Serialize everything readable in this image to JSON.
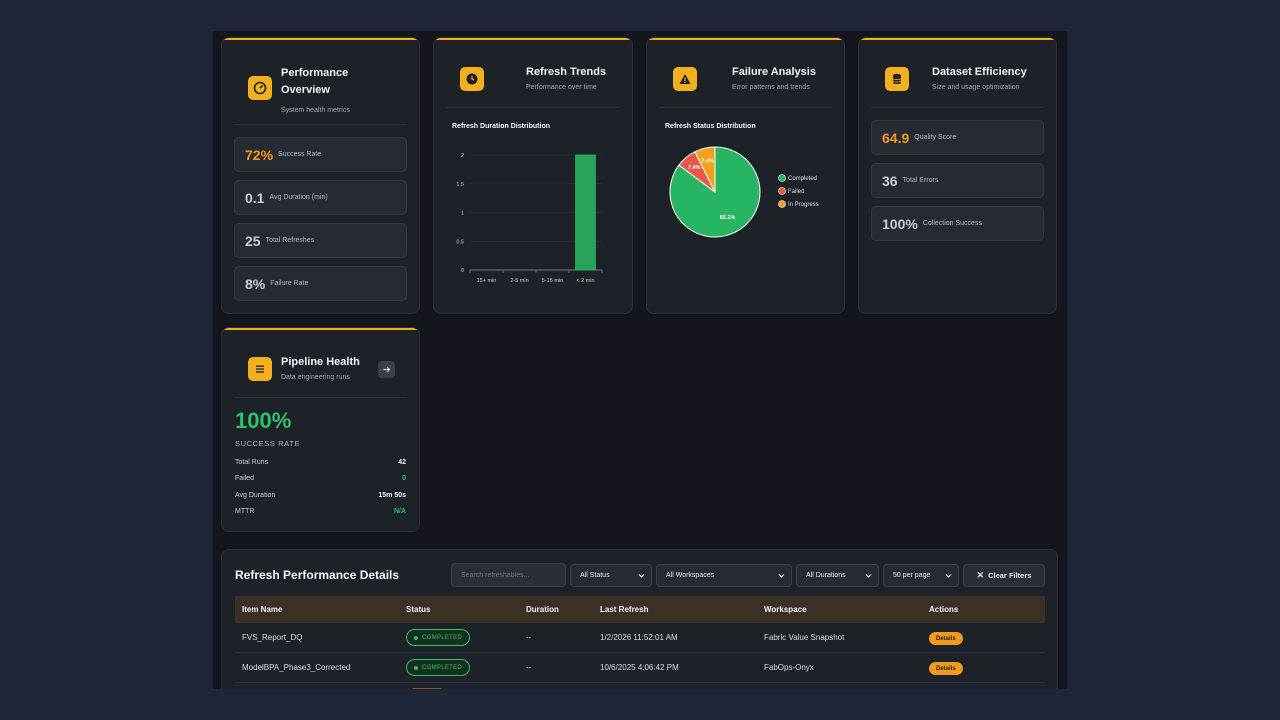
{
  "performance": {
    "title_line1": "Performance",
    "title_line2": "Overview",
    "subtitle": "System health metrics",
    "metrics": [
      {
        "value": "72%",
        "label": "Success Rate"
      },
      {
        "value": "0.1",
        "label": "Avg Duration (min)"
      },
      {
        "value": "25",
        "label": "Total Refreshes"
      },
      {
        "value": "8%",
        "label": "Failure Rate"
      }
    ]
  },
  "trends": {
    "title": "Refresh Trends",
    "subtitle": "Performance over time",
    "chart_title": "Refresh Duration Distribution"
  },
  "failure": {
    "title": "Failure Analysis",
    "subtitle": "Error patterns and trends",
    "chart_title": "Refresh Status Distribution"
  },
  "efficiency": {
    "title": "Dataset Efficiency",
    "subtitle": "Size and usage optimization",
    "metrics": [
      {
        "value": "64.9",
        "label": "Quality Score"
      },
      {
        "value": "36",
        "label": "Total Errors"
      },
      {
        "value": "100%",
        "label": "Collection Success"
      }
    ]
  },
  "pipeline": {
    "title": "Pipeline Health",
    "subtitle": "Data engineering runs",
    "big_value": "100%",
    "big_label": "SUCCESS RATE",
    "rows": [
      {
        "label": "Total Runs",
        "value": "42"
      },
      {
        "label": "Failed",
        "value": "0"
      },
      {
        "label": "Avg Duration",
        "value": "15m 50s"
      },
      {
        "label": "MTTR",
        "value": "N/A"
      }
    ]
  },
  "details": {
    "title": "Refresh Performance Details",
    "search_placeholder": "Search refreshables...",
    "filters": {
      "status": "All Status",
      "workspaces": "All Workspaces",
      "durations": "All Durations",
      "per_page": "50 per page",
      "clear": "Clear Filters"
    },
    "columns": [
      "Item Name",
      "Status",
      "Duration",
      "Last Refresh",
      "Workspace",
      "Actions"
    ],
    "rows": [
      {
        "name": "FVS_Report_DQ",
        "status": "COMPLETED",
        "duration": "--",
        "last_refresh": "1/2/2026 11:52:01 AM",
        "workspace": "Fabric Value Snapshot",
        "action": "Details"
      },
      {
        "name": "ModelBPA_Phase3_Corrected",
        "status": "COMPLETED",
        "duration": "--",
        "last_refresh": "10/6/2025 4:06:42 PM",
        "workspace": "FabOps-Onyx",
        "action": "Details"
      }
    ]
  },
  "colors": {
    "accent": "#f2b01e",
    "success": "#2ec26a",
    "failed": "#e8574a",
    "in_progress": "#f2a01e"
  },
  "chart_data": [
    {
      "type": "bar",
      "title": "Refresh Duration Distribution",
      "categories": [
        "15+ min",
        "2-5 min",
        "5-15 min",
        "< 2 min"
      ],
      "values": [
        0,
        0,
        0,
        2
      ],
      "yticks": [
        "0",
        "0.5",
        "1",
        "1.5",
        "2"
      ],
      "ylim": [
        0,
        2
      ]
    },
    {
      "type": "pie",
      "title": "Refresh Status Distribution",
      "labels": [
        "Completed",
        "Failed",
        "In Progress"
      ],
      "values": [
        85.2,
        7.4,
        7.4
      ],
      "value_labels": [
        "85.2%",
        "7.4%",
        "7.4%"
      ],
      "colors": [
        "#27b463",
        "#e8574a",
        "#f2a01e"
      ],
      "legend": "right"
    }
  ]
}
